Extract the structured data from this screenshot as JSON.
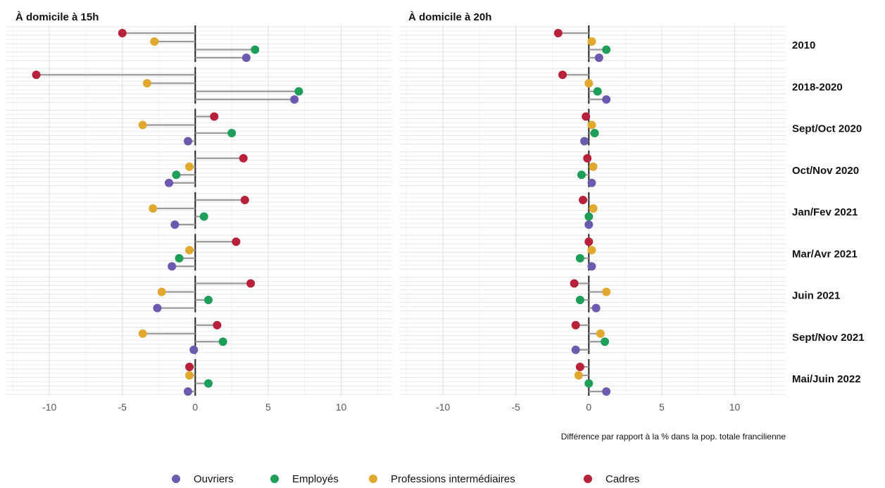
{
  "chart_data": {
    "type": "lollipop",
    "xlabel": "Différence par rapport à la % dans la pop. totale francilienne",
    "xlim": [
      -13,
      13.5
    ],
    "xticks": [
      -10,
      -5,
      0,
      5,
      10
    ],
    "xtick_labels": [
      "-10",
      "-5",
      "0",
      "5",
      "10"
    ],
    "grid": true,
    "legend_position": "bottom",
    "legend": [
      {
        "name": "Ouvriers",
        "color": "#6b5aad"
      },
      {
        "name": "Employés",
        "color": "#1f9e5a"
      },
      {
        "name": "Professions intermédiaires",
        "color": "#e0a82e"
      },
      {
        "name": "Cadres",
        "color": "#b8213a"
      }
    ],
    "categories": [
      "2010",
      "2018-2020",
      "Sept/Oct 2020",
      "Oct/Nov 2020",
      "Jan/Fev 2021",
      "Mar/Avr 2021",
      "Juin 2021",
      "Sept/Nov 2021",
      "Mai/Juin 2022"
    ],
    "panels": [
      {
        "title": "À domicile à 15h",
        "series": [
          {
            "name": "Cadres",
            "values": [
              -5.0,
              -10.9,
              1.3,
              3.3,
              3.4,
              2.8,
              3.8,
              1.5,
              -0.4
            ]
          },
          {
            "name": "Professions intermédiaires",
            "values": [
              -2.8,
              -3.3,
              -3.6,
              -0.4,
              -2.9,
              -0.4,
              -2.3,
              -3.6,
              -0.4
            ]
          },
          {
            "name": "Employés",
            "values": [
              4.1,
              7.1,
              2.5,
              -1.3,
              0.6,
              -1.1,
              0.9,
              1.9,
              0.9
            ]
          },
          {
            "name": "Ouvriers",
            "values": [
              3.5,
              6.8,
              -0.5,
              -1.8,
              -1.4,
              -1.6,
              -2.6,
              -0.1,
              -0.5
            ]
          }
        ]
      },
      {
        "title": "À domicile à 20h",
        "series": [
          {
            "name": "Cadres",
            "values": [
              -2.1,
              -1.8,
              -0.2,
              -0.1,
              -0.4,
              0.0,
              -1.0,
              -0.9,
              -0.6
            ]
          },
          {
            "name": "Professions intermédiaires",
            "values": [
              0.2,
              0.0,
              0.2,
              0.3,
              0.3,
              0.2,
              1.2,
              0.8,
              -0.7
            ]
          },
          {
            "name": "Employés",
            "values": [
              1.2,
              0.6,
              0.4,
              -0.5,
              0.0,
              -0.6,
              -0.6,
              1.1,
              0.0
            ]
          },
          {
            "name": "Ouvriers",
            "values": [
              0.7,
              1.2,
              -0.3,
              0.2,
              0.0,
              0.2,
              0.5,
              -0.9,
              1.2
            ]
          }
        ]
      }
    ]
  }
}
